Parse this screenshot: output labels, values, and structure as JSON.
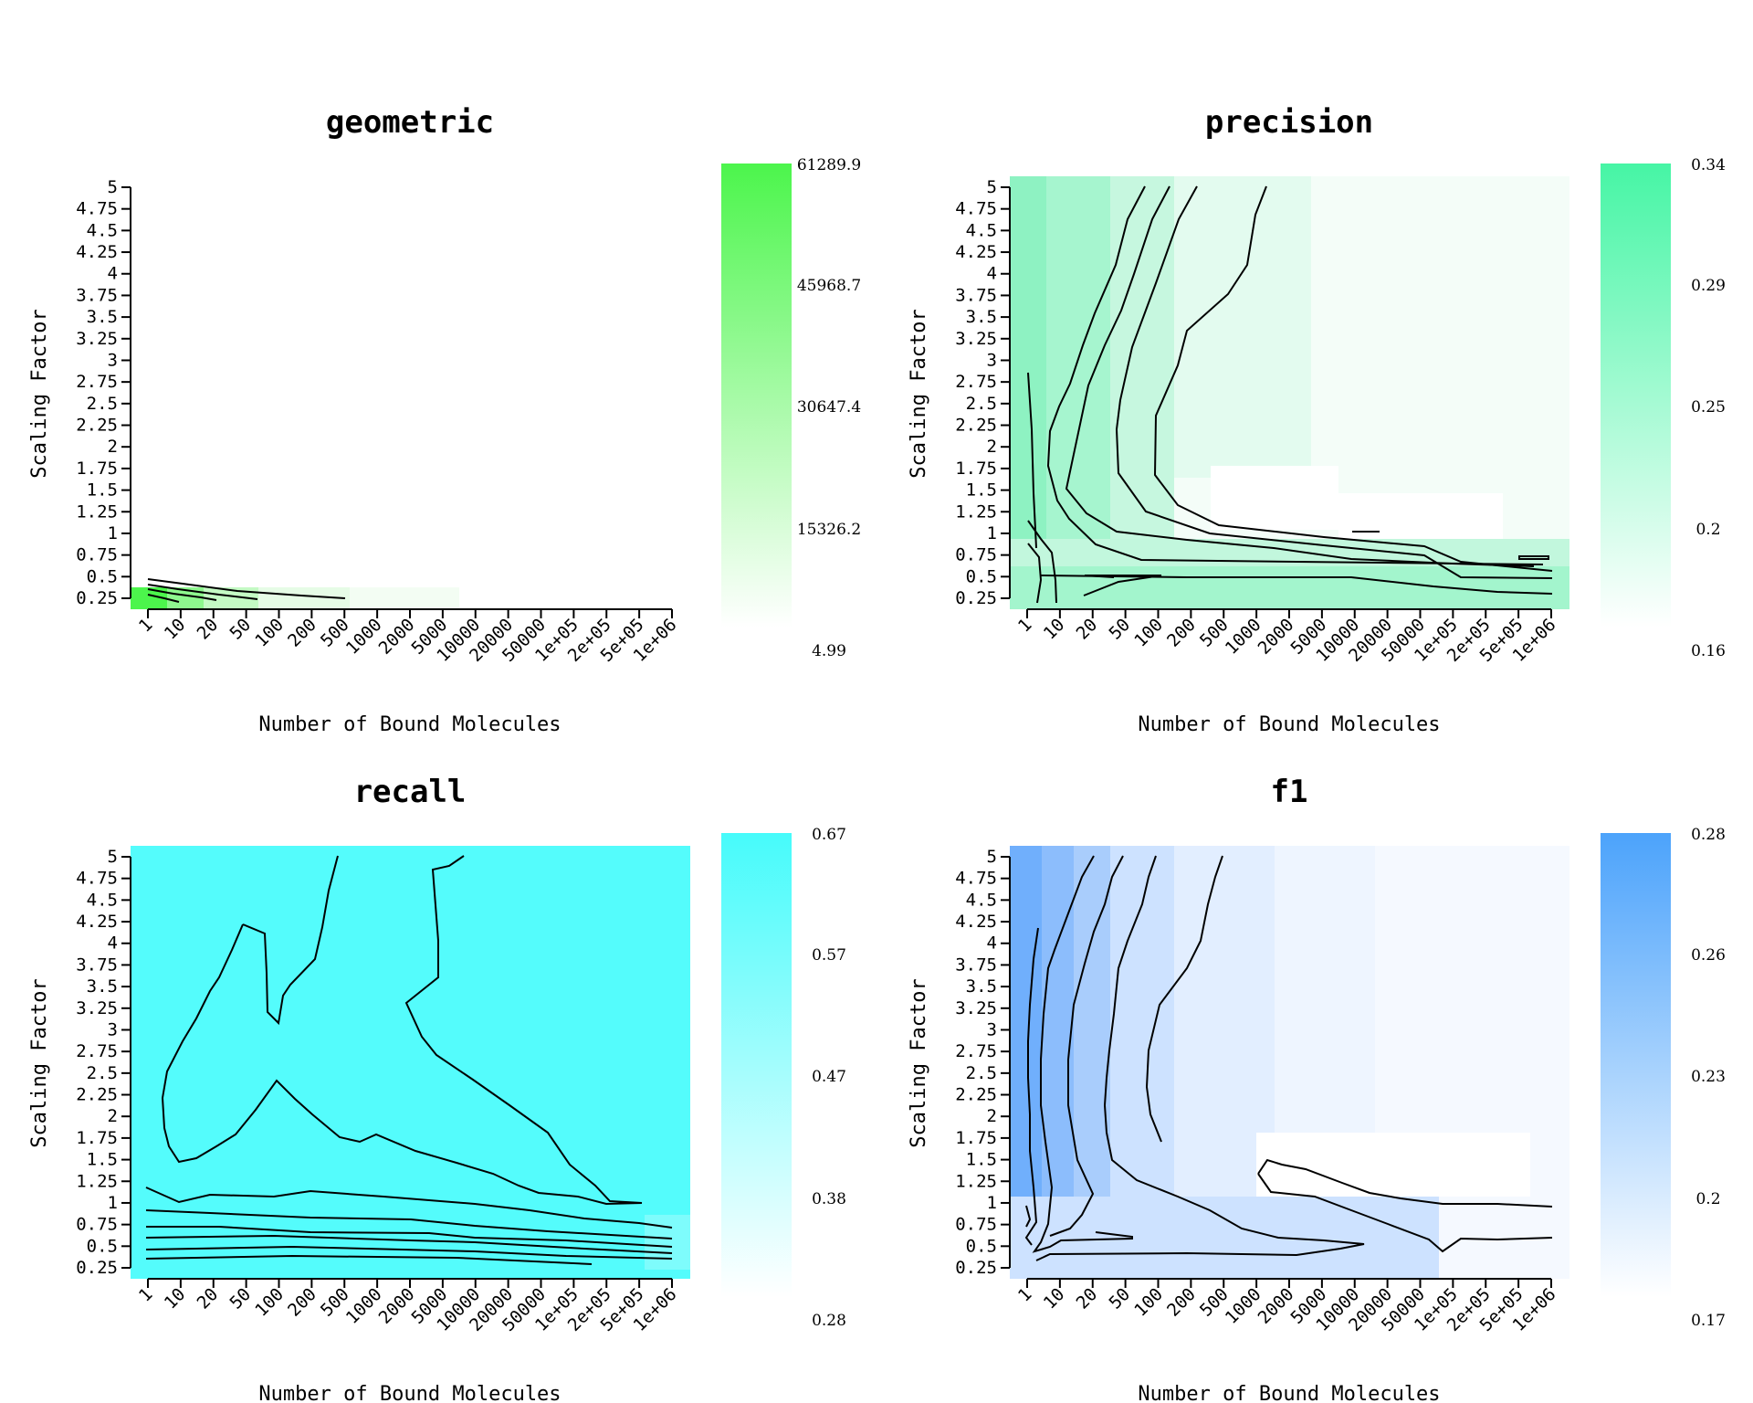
{
  "chart_data": [
    {
      "type": "heatmap",
      "title": "geometric",
      "xlabel": "Number of Bound Molecules",
      "ylabel": "Scaling Factor",
      "x_ticks": [
        "1",
        "10",
        "20",
        "50",
        "100",
        "200",
        "500",
        "1000",
        "2000",
        "5000",
        "10000",
        "20000",
        "50000",
        "1e+05",
        "2e+05",
        "5e+05",
        "1e+06"
      ],
      "y_ticks": [
        "0.25",
        "0.5",
        "0.75",
        "1",
        "1.25",
        "1.5",
        "1.75",
        "2",
        "2.25",
        "2.5",
        "2.75",
        "3",
        "3.25",
        "3.5",
        "3.75",
        "4",
        "4.25",
        "4.5",
        "4.75",
        "5"
      ],
      "colorbar": {
        "labels": [
          "61289.9",
          "45968.7",
          "30647.4",
          "15326.2",
          "4.99"
        ],
        "color_high": "#4cf54c",
        "color_low": "#ffffff"
      }
    },
    {
      "type": "heatmap",
      "title": "precision",
      "xlabel": "Number of Bound Molecules",
      "ylabel": "Scaling Factor",
      "x_ticks": [
        "1",
        "10",
        "20",
        "50",
        "100",
        "200",
        "500",
        "1000",
        "2000",
        "5000",
        "10000",
        "20000",
        "50000",
        "1e+05",
        "2e+05",
        "5e+05",
        "1e+06"
      ],
      "y_ticks": [
        "0.25",
        "0.5",
        "0.75",
        "1",
        "1.25",
        "1.5",
        "1.75",
        "2",
        "2.25",
        "2.5",
        "2.75",
        "3",
        "3.25",
        "3.5",
        "3.75",
        "4",
        "4.25",
        "4.5",
        "4.75",
        "5"
      ],
      "colorbar": {
        "labels": [
          "0.34",
          "0.29",
          "0.25",
          "0.2",
          "0.16"
        ],
        "color_high": "#46f5a5",
        "color_low": "#ffffff"
      }
    },
    {
      "type": "heatmap",
      "title": "recall",
      "xlabel": "Number of Bound Molecules",
      "ylabel": "Scaling Factor",
      "x_ticks": [
        "1",
        "10",
        "20",
        "50",
        "100",
        "200",
        "500",
        "1000",
        "2000",
        "5000",
        "10000",
        "20000",
        "50000",
        "1e+05",
        "2e+05",
        "5e+05",
        "1e+06"
      ],
      "y_ticks": [
        "0.25",
        "0.5",
        "0.75",
        "1",
        "1.25",
        "1.5",
        "1.75",
        "2",
        "2.25",
        "2.5",
        "2.75",
        "3",
        "3.25",
        "3.5",
        "3.75",
        "4",
        "4.25",
        "4.5",
        "4.75",
        "5"
      ],
      "colorbar": {
        "labels": [
          "0.67",
          "0.57",
          "0.47",
          "0.38",
          "0.28"
        ],
        "color_high": "#46fbfb",
        "color_low": "#ffffff"
      }
    },
    {
      "type": "heatmap",
      "title": "f1",
      "xlabel": "Number of Bound Molecules",
      "ylabel": "Scaling Factor",
      "x_ticks": [
        "1",
        "10",
        "20",
        "50",
        "100",
        "200",
        "500",
        "1000",
        "2000",
        "5000",
        "10000",
        "20000",
        "50000",
        "1e+05",
        "2e+05",
        "5e+05",
        "1e+06"
      ],
      "y_ticks": [
        "0.25",
        "0.5",
        "0.75",
        "1",
        "1.25",
        "1.5",
        "1.75",
        "2",
        "2.25",
        "2.5",
        "2.75",
        "3",
        "3.25",
        "3.5",
        "3.75",
        "4",
        "4.25",
        "4.5",
        "4.75",
        "5"
      ],
      "colorbar": {
        "labels": [
          "0.28",
          "0.26",
          "0.23",
          "0.2",
          "0.17"
        ],
        "color_high": "#4ca3fb",
        "color_low": "#ffffff"
      }
    }
  ]
}
